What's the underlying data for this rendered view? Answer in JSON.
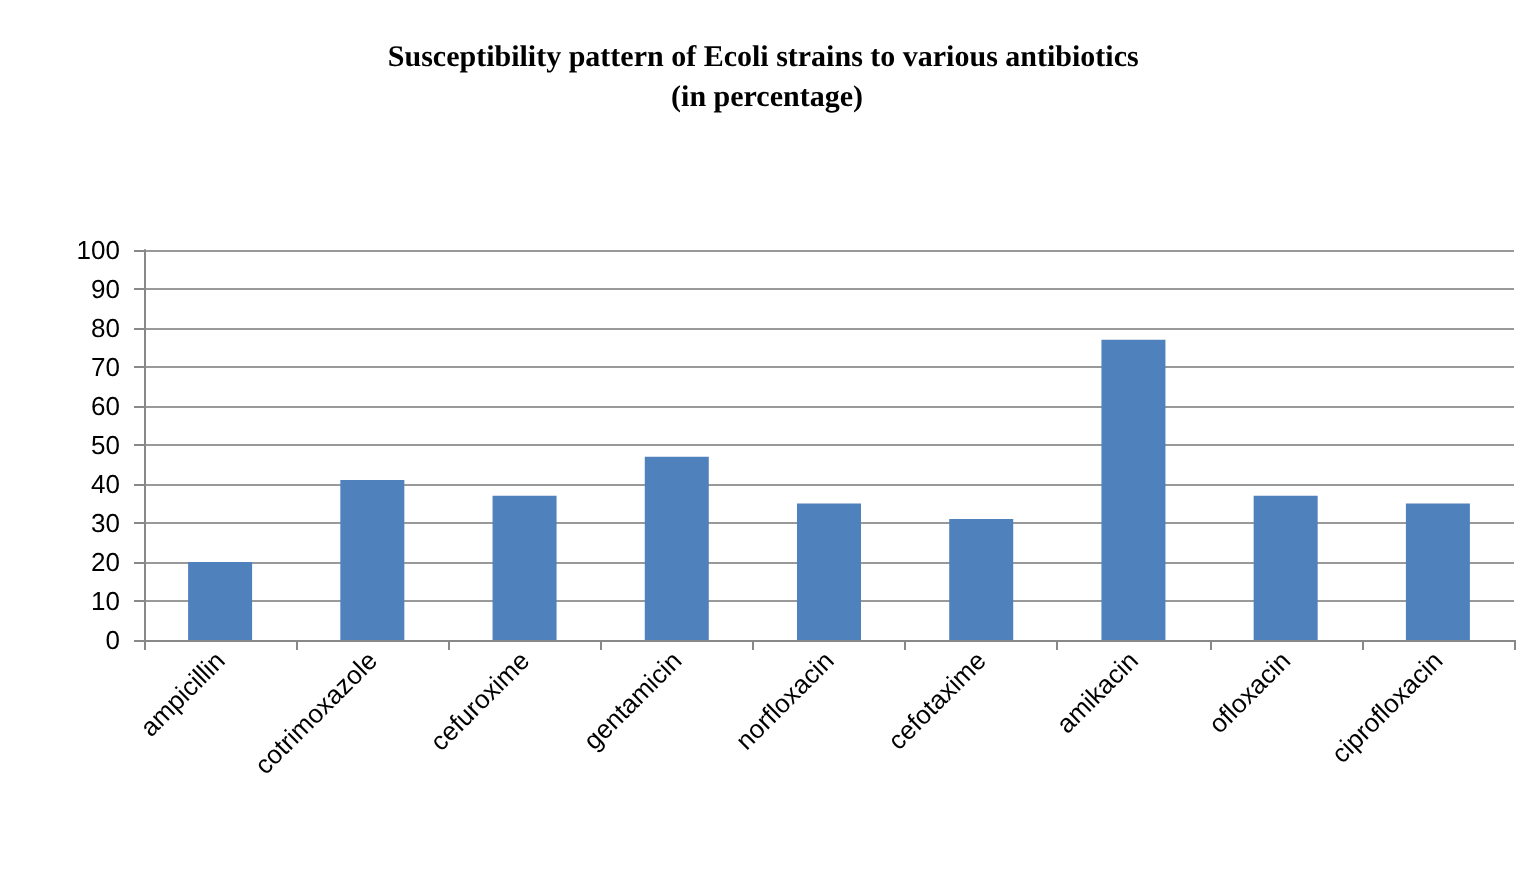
{
  "chart_data": {
    "type": "bar",
    "title": "Susceptibility pattern of Ecoli strains to various antibiotics (in percentage)",
    "categories": [
      "ampicillin",
      "cotrimoxazole",
      "cefuroxime",
      "gentamicin",
      "norfloxacin",
      "cefotaxime",
      "amikacin",
      "ofloxacin",
      "ciprofloxacin"
    ],
    "values": [
      20,
      41,
      37,
      47,
      35,
      31,
      77,
      37,
      35
    ],
    "color": "#4f81bd",
    "ylim": [
      0,
      100
    ],
    "yticks": [
      0,
      10,
      20,
      30,
      40,
      50,
      60,
      70,
      80,
      90,
      100
    ],
    "grid": "y"
  }
}
